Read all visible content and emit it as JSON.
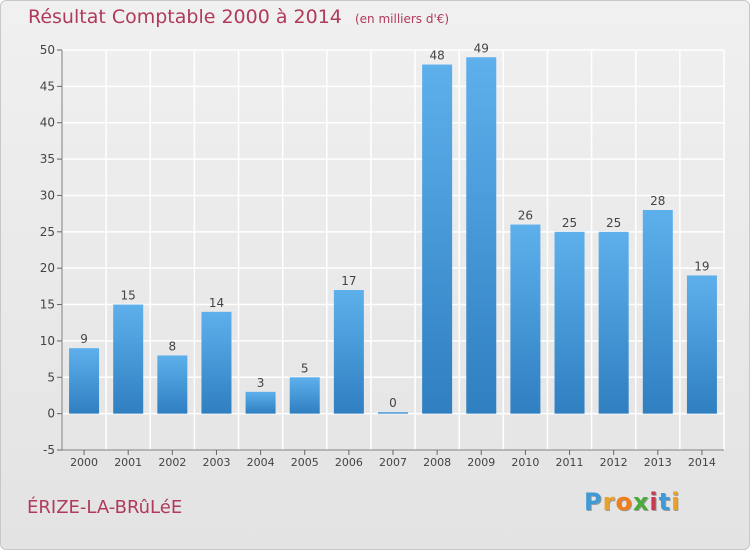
{
  "header": {
    "title": "Résultat Comptable 2000 à 2014",
    "unit": "(en milliers d'€)"
  },
  "footer": {
    "place": "ÉRIZE-LA-BRûLéE",
    "brand": "Proxiti",
    "brand_letters": [
      {
        "ch": "P",
        "color": "#3f9ad6"
      },
      {
        "ch": "r",
        "color": "#e9a12a"
      },
      {
        "ch": "o",
        "color": "#ef7d1a"
      },
      {
        "ch": "x",
        "color": "#4aaa3c"
      },
      {
        "ch": "i",
        "color": "#c43a4e"
      },
      {
        "ch": "t",
        "color": "#3f9ad6"
      },
      {
        "ch": "i",
        "color": "#e9a12a"
      }
    ]
  },
  "colors": {
    "bar_top": "#5eb0ec",
    "bar_bottom": "#2f7fc1",
    "title": "#b03a5a",
    "grid": "#ffffff",
    "axis_text": "#444444"
  },
  "chart_data": {
    "type": "bar",
    "title": "Résultat Comptable 2000 à 2014",
    "subtitle": "(en milliers d'€)",
    "xlabel": "",
    "ylabel": "",
    "categories": [
      "2000",
      "2001",
      "2002",
      "2003",
      "2004",
      "2005",
      "2006",
      "2007",
      "2008",
      "2009",
      "2010",
      "2011",
      "2012",
      "2013",
      "2014"
    ],
    "values": [
      9,
      15,
      8,
      14,
      3,
      5,
      17,
      0,
      48,
      49,
      26,
      25,
      25,
      28,
      19
    ],
    "ylim": [
      -5,
      50
    ],
    "yticks": [
      -5,
      0,
      5,
      10,
      15,
      20,
      25,
      30,
      35,
      40,
      45,
      50
    ],
    "grid": true,
    "legend": "none"
  }
}
